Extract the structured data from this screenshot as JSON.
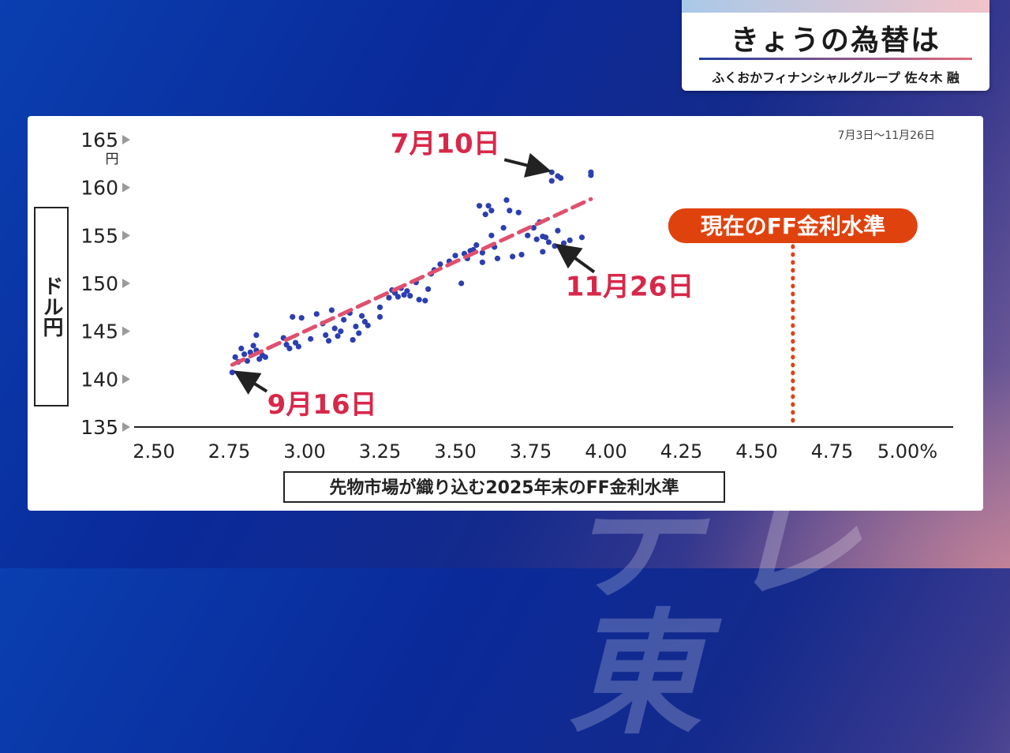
{
  "header": {
    "title": "きょうの為替は",
    "byline": "ふくおかフィナンシャルグループ 佐々木 融"
  },
  "watermark": "テレ東",
  "colors": {
    "dot": "#2b3fb0",
    "trend": "#e0506e",
    "annotation": "#d8284a",
    "ff_marker": "#e0420e",
    "axis": "#222222"
  },
  "chart_data": {
    "type": "scatter",
    "period_label": "7月3日〜11月26日",
    "ylabel": "ドル円",
    "y_unit": "円",
    "xlabel": "先物市場が織り込む2025年末のFF金利水準",
    "x_unit": "%",
    "xlim": [
      2.5,
      5.0
    ],
    "ylim": [
      135,
      165
    ],
    "x_ticks": [
      "2.50",
      "2.75",
      "3.00",
      "3.25",
      "3.50",
      "3.75",
      "4.00",
      "4.25",
      "4.50",
      "4.75",
      "5.00%"
    ],
    "y_ticks": [
      "165",
      "160",
      "155",
      "150",
      "145",
      "140",
      "135"
    ],
    "trendline": {
      "x": [
        2.76,
        3.95
      ],
      "y": [
        141.5,
        158.8
      ]
    },
    "ff_current": {
      "label": "現在のFF金利水準",
      "x": 4.62
    },
    "annotations": [
      {
        "label": "7月10日",
        "x": 3.82,
        "y": 161.6
      },
      {
        "label": "9月16日",
        "x": 2.77,
        "y": 140.7
      },
      {
        "label": "11月26日",
        "x": 3.83,
        "y": 153.9
      }
    ],
    "points": [
      {
        "x": 2.76,
        "y": 140.7
      },
      {
        "x": 2.77,
        "y": 142.3
      },
      {
        "x": 2.78,
        "y": 141.8
      },
      {
        "x": 2.79,
        "y": 143.2
      },
      {
        "x": 2.8,
        "y": 142.6
      },
      {
        "x": 2.81,
        "y": 141.9
      },
      {
        "x": 2.82,
        "y": 142.8
      },
      {
        "x": 2.83,
        "y": 143.5
      },
      {
        "x": 2.84,
        "y": 144.6
      },
      {
        "x": 2.84,
        "y": 143.0
      },
      {
        "x": 2.85,
        "y": 142.1
      },
      {
        "x": 2.86,
        "y": 142.5
      },
      {
        "x": 2.87,
        "y": 142.3
      },
      {
        "x": 2.93,
        "y": 144.3
      },
      {
        "x": 2.94,
        "y": 143.6
      },
      {
        "x": 2.95,
        "y": 143.2
      },
      {
        "x": 2.96,
        "y": 146.5
      },
      {
        "x": 2.97,
        "y": 143.8
      },
      {
        "x": 2.98,
        "y": 143.4
      },
      {
        "x": 2.99,
        "y": 146.4
      },
      {
        "x": 3.02,
        "y": 144.2
      },
      {
        "x": 3.04,
        "y": 146.8
      },
      {
        "x": 3.06,
        "y": 145.8
      },
      {
        "x": 3.07,
        "y": 144.6
      },
      {
        "x": 3.08,
        "y": 144.0
      },
      {
        "x": 3.09,
        "y": 147.2
      },
      {
        "x": 3.1,
        "y": 145.3
      },
      {
        "x": 3.11,
        "y": 144.5
      },
      {
        "x": 3.12,
        "y": 145.0
      },
      {
        "x": 3.13,
        "y": 146.2
      },
      {
        "x": 3.15,
        "y": 146.9
      },
      {
        "x": 3.16,
        "y": 144.1
      },
      {
        "x": 3.17,
        "y": 145.5
      },
      {
        "x": 3.18,
        "y": 144.8
      },
      {
        "x": 3.19,
        "y": 146.6
      },
      {
        "x": 3.2,
        "y": 146.0
      },
      {
        "x": 3.21,
        "y": 145.6
      },
      {
        "x": 3.25,
        "y": 146.5
      },
      {
        "x": 3.25,
        "y": 147.5
      },
      {
        "x": 3.28,
        "y": 148.5
      },
      {
        "x": 3.29,
        "y": 149.3
      },
      {
        "x": 3.3,
        "y": 149.0
      },
      {
        "x": 3.31,
        "y": 148.6
      },
      {
        "x": 3.32,
        "y": 149.5
      },
      {
        "x": 3.33,
        "y": 148.8
      },
      {
        "x": 3.34,
        "y": 149.2
      },
      {
        "x": 3.35,
        "y": 148.7
      },
      {
        "x": 3.37,
        "y": 150.1
      },
      {
        "x": 3.38,
        "y": 148.3
      },
      {
        "x": 3.4,
        "y": 148.2
      },
      {
        "x": 3.41,
        "y": 149.4
      },
      {
        "x": 3.42,
        "y": 151.0
      },
      {
        "x": 3.43,
        "y": 151.4
      },
      {
        "x": 3.45,
        "y": 152.0
      },
      {
        "x": 3.48,
        "y": 152.3
      },
      {
        "x": 3.5,
        "y": 152.9
      },
      {
        "x": 3.52,
        "y": 150.0
      },
      {
        "x": 3.53,
        "y": 153.1
      },
      {
        "x": 3.54,
        "y": 152.6
      },
      {
        "x": 3.55,
        "y": 153.4
      },
      {
        "x": 3.56,
        "y": 153.5
      },
      {
        "x": 3.57,
        "y": 154.0
      },
      {
        "x": 3.58,
        "y": 158.1
      },
      {
        "x": 3.59,
        "y": 153.2
      },
      {
        "x": 3.59,
        "y": 152.2
      },
      {
        "x": 3.6,
        "y": 157.2
      },
      {
        "x": 3.61,
        "y": 158.1
      },
      {
        "x": 3.62,
        "y": 157.6
      },
      {
        "x": 3.62,
        "y": 155.0
      },
      {
        "x": 3.63,
        "y": 153.8
      },
      {
        "x": 3.64,
        "y": 152.6
      },
      {
        "x": 3.66,
        "y": 155.8
      },
      {
        "x": 3.67,
        "y": 158.7
      },
      {
        "x": 3.68,
        "y": 157.6
      },
      {
        "x": 3.69,
        "y": 152.8
      },
      {
        "x": 3.71,
        "y": 157.4
      },
      {
        "x": 3.72,
        "y": 153.0
      },
      {
        "x": 3.74,
        "y": 155.0
      },
      {
        "x": 3.76,
        "y": 155.8
      },
      {
        "x": 3.77,
        "y": 154.6
      },
      {
        "x": 3.78,
        "y": 156.4
      },
      {
        "x": 3.79,
        "y": 153.3
      },
      {
        "x": 3.79,
        "y": 154.9
      },
      {
        "x": 3.8,
        "y": 154.8
      },
      {
        "x": 3.81,
        "y": 154.3
      },
      {
        "x": 3.82,
        "y": 161.6
      },
      {
        "x": 3.82,
        "y": 160.7
      },
      {
        "x": 3.83,
        "y": 153.9
      },
      {
        "x": 3.84,
        "y": 155.5
      },
      {
        "x": 3.84,
        "y": 161.2
      },
      {
        "x": 3.85,
        "y": 161.0
      },
      {
        "x": 3.86,
        "y": 154.2
      },
      {
        "x": 3.88,
        "y": 154.5
      },
      {
        "x": 3.92,
        "y": 154.8
      },
      {
        "x": 3.95,
        "y": 161.6
      },
      {
        "x": 3.95,
        "y": 161.3
      }
    ]
  }
}
